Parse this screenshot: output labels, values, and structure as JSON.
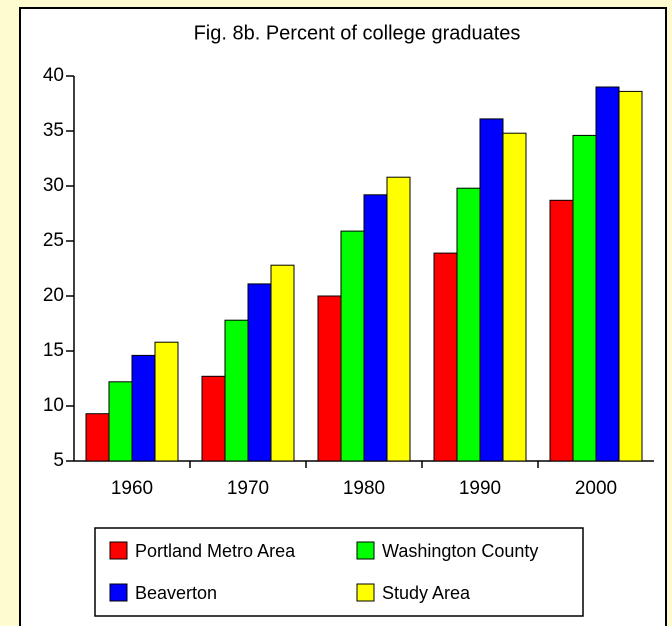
{
  "chart_data": {
    "type": "bar",
    "title": "Fig. 8b. Percent of college graduates",
    "categories": [
      "1960",
      "1970",
      "1980",
      "1990",
      "2000"
    ],
    "series": [
      {
        "name": "Portland Metro Area",
        "color": "#ff0000",
        "values": [
          9.3,
          12.7,
          20.0,
          23.9,
          28.7
        ]
      },
      {
        "name": "Washington County",
        "color": "#00ff00",
        "values": [
          12.2,
          17.8,
          25.9,
          29.8,
          34.6
        ]
      },
      {
        "name": "Beaverton",
        "color": "#0000ff",
        "values": [
          14.6,
          21.1,
          29.2,
          36.1,
          39.0
        ]
      },
      {
        "name": "Study Area",
        "color": "#ffff00",
        "values": [
          15.8,
          22.8,
          30.8,
          34.8,
          38.6
        ]
      }
    ],
    "ylim": [
      5,
      40
    ],
    "yticks": [
      5,
      10,
      15,
      20,
      25,
      30,
      35,
      40
    ],
    "grid": false,
    "legend": "bottom"
  }
}
